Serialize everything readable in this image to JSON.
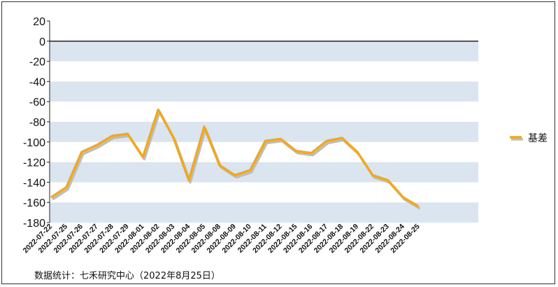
{
  "chart_data": {
    "type": "line",
    "x": [
      "2022-07-22",
      "2022-07-25",
      "2022-07-26",
      "2022-07-27",
      "2022-07-28",
      "2022-07-29",
      "2022-08-01",
      "2022-08-02",
      "2022-08-03",
      "2022-08-04",
      "2022-08-05",
      "2022-08-08",
      "2022-08-09",
      "2022-08-10",
      "2022-08-11",
      "2022-08-12",
      "2022-08-15",
      "2022-08-16",
      "2022-08-17",
      "2022-08-18",
      "2022-08-19",
      "2022-08-22",
      "2022-08-23",
      "2022-08-24",
      "2022-08-25"
    ],
    "series": [
      {
        "name": "基差",
        "values": [
          -155,
          -145,
          -110,
          -103,
          -94,
          -92,
          -115,
          -68,
          -96,
          -138,
          -85,
          -123,
          -133,
          -128,
          -99,
          -97,
          -109,
          -111,
          -99,
          -96,
          -110,
          -133,
          -138,
          -155,
          -164
        ]
      }
    ],
    "ylim": [
      -180,
      20
    ],
    "yticks": [
      "20",
      "0",
      "-20",
      "-40",
      "-60",
      "-80",
      "-100",
      "-120",
      "-140",
      "-160",
      "-180"
    ],
    "grid": "alternating horizontal bands",
    "legend_position": "right",
    "colors": {
      "line": "#f0a91e",
      "shadow": "#bdbdbd",
      "band": "#dbe5f0",
      "zero_line": "#111111"
    }
  },
  "source_note": "数据统计：七禾研究中心（2022年8月25日）"
}
